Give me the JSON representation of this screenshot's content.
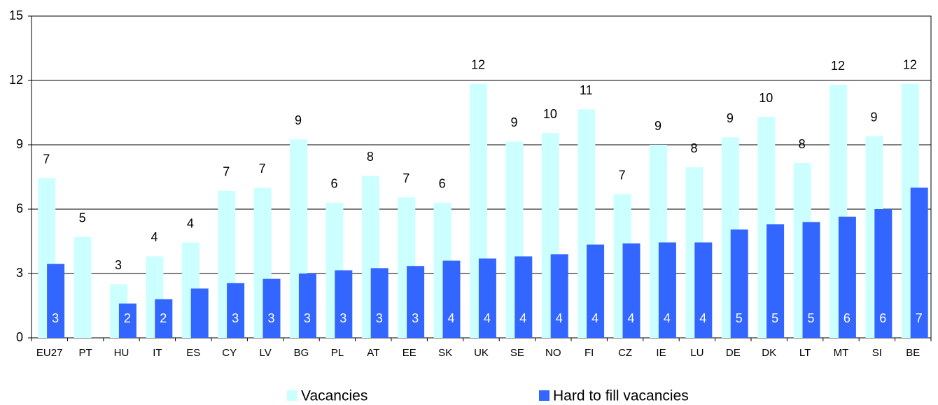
{
  "chart_data": {
    "type": "bar",
    "categories": [
      "EU27",
      "PT",
      "HU",
      "IT",
      "ES",
      "CY",
      "LV",
      "BG",
      "PL",
      "AT",
      "EE",
      "SK",
      "UK",
      "SE",
      "NO",
      "FI",
      "CZ",
      "IE",
      "LU",
      "DE",
      "DK",
      "LT",
      "MT",
      "SI",
      "BE"
    ],
    "series": [
      {
        "name": "Vacancies",
        "color": "#ccffff",
        "values": [
          7.45,
          4.7,
          2.5,
          3.8,
          4.45,
          6.85,
          7.0,
          9.25,
          6.3,
          7.55,
          6.55,
          6.3,
          11.85,
          9.15,
          9.55,
          10.65,
          6.7,
          9.0,
          7.95,
          9.35,
          10.3,
          8.15,
          11.8,
          9.4,
          11.85
        ],
        "value_labels": [
          "7",
          "5",
          "3",
          "4",
          "4",
          "7",
          "7",
          "9",
          "6",
          "8",
          "7",
          "6",
          "12",
          "9",
          "10",
          "11",
          "7",
          "9",
          "8",
          "9",
          "10",
          "8",
          "12",
          "9",
          "12"
        ]
      },
      {
        "name": "Hard to fill vacancies",
        "color": "#3366ff",
        "values": [
          3.45,
          null,
          1.6,
          1.8,
          2.3,
          2.55,
          2.75,
          3.0,
          3.15,
          3.25,
          3.35,
          3.6,
          3.7,
          3.8,
          3.9,
          4.35,
          4.4,
          4.45,
          4.45,
          5.05,
          5.3,
          5.4,
          5.65,
          6.0,
          7.0
        ],
        "value_labels": [
          "3",
          null,
          "2",
          "2",
          null,
          "3",
          "3",
          "3",
          "3",
          "3",
          "3",
          "4",
          "4",
          "4",
          "4",
          "4",
          "4",
          "4",
          "4",
          "5",
          "5",
          "5",
          "6",
          "6",
          "7"
        ]
      }
    ],
    "ylim": [
      0,
      15
    ],
    "yticks": [
      0,
      3,
      6,
      9,
      12,
      15
    ],
    "grid": true
  }
}
